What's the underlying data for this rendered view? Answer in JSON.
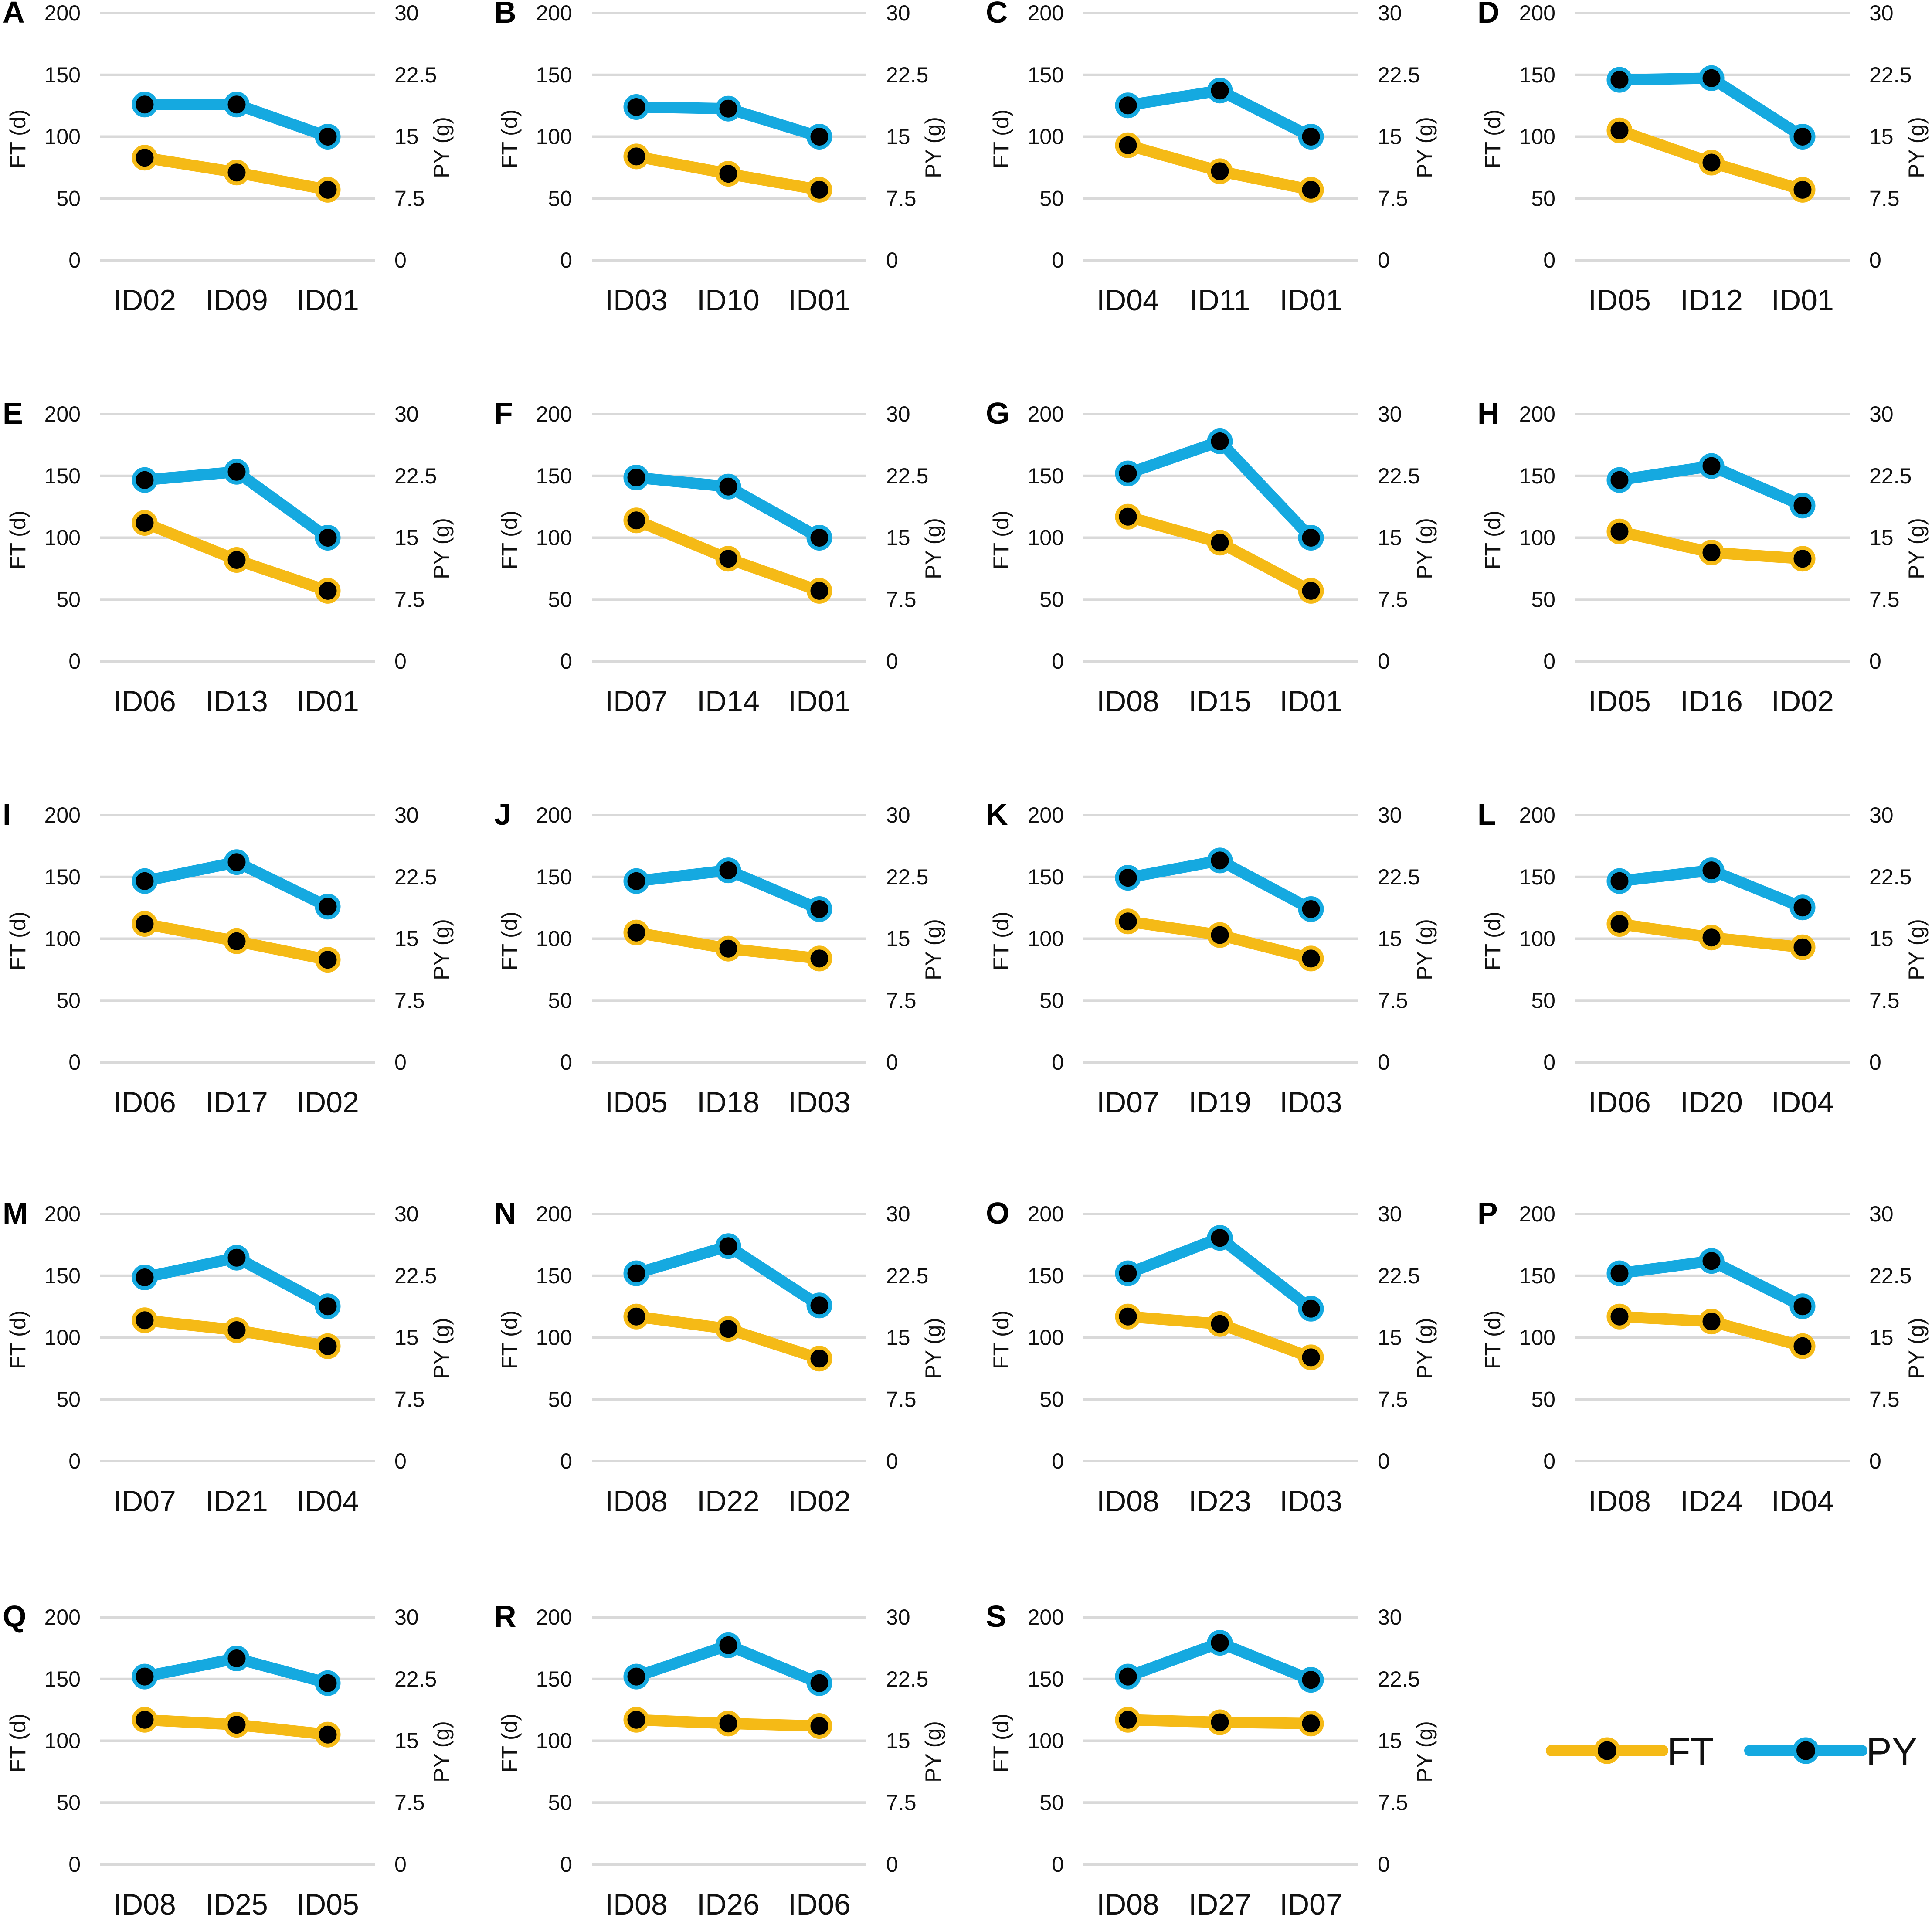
{
  "chart_data": [
    {
      "panel": "A",
      "type": "line",
      "categories": [
        "ID02",
        "ID09",
        "ID01"
      ],
      "series": [
        {
          "name": "FT",
          "axis": "left",
          "values": [
            83,
            71,
            57
          ]
        },
        {
          "name": "PY",
          "axis": "right",
          "values": [
            18.9,
            18.9,
            15.0
          ]
        }
      ],
      "ylabel": "FT (d)",
      "y2label": "PY (g)",
      "ylim": [
        0,
        200
      ],
      "y2lim": [
        0,
        30
      ],
      "yticks": [
        "0",
        "50",
        "100",
        "150",
        "200"
      ],
      "y2ticks": [
        "0",
        "7.5",
        "15",
        "22.5",
        "30"
      ]
    },
    {
      "panel": "B",
      "type": "line",
      "categories": [
        "ID03",
        "ID10",
        "ID01"
      ],
      "series": [
        {
          "name": "FT",
          "axis": "left",
          "values": [
            84,
            70,
            57
          ]
        },
        {
          "name": "PY",
          "axis": "right",
          "values": [
            18.6,
            18.4,
            15.0
          ]
        }
      ],
      "ylabel": "FT (d)",
      "y2label": "PY (g)",
      "ylim": [
        0,
        200
      ],
      "y2lim": [
        0,
        30
      ],
      "yticks": [
        "0",
        "50",
        "100",
        "150",
        "200"
      ],
      "y2ticks": [
        "0",
        "7.5",
        "15",
        "22.5",
        "30"
      ]
    },
    {
      "panel": "C",
      "type": "line",
      "categories": [
        "ID04",
        "ID11",
        "ID01"
      ],
      "series": [
        {
          "name": "FT",
          "axis": "left",
          "values": [
            93,
            72,
            57
          ]
        },
        {
          "name": "PY",
          "axis": "right",
          "values": [
            18.8,
            20.6,
            15.0
          ]
        }
      ],
      "ylabel": "FT (d)",
      "y2label": "PY (g)",
      "ylim": [
        0,
        200
      ],
      "y2lim": [
        0,
        30
      ],
      "yticks": [
        "0",
        "50",
        "100",
        "150",
        "200"
      ],
      "y2ticks": [
        "0",
        "7.5",
        "15",
        "22.5",
        "30"
      ]
    },
    {
      "panel": "D",
      "type": "line",
      "categories": [
        "ID05",
        "ID12",
        "ID01"
      ],
      "series": [
        {
          "name": "FT",
          "axis": "left",
          "values": [
            105,
            79,
            57
          ]
        },
        {
          "name": "PY",
          "axis": "right",
          "values": [
            21.9,
            22.1,
            15.0
          ]
        }
      ],
      "ylabel": "FT (d)",
      "y2label": "PY (g)",
      "ylim": [
        0,
        200
      ],
      "y2lim": [
        0,
        30
      ],
      "yticks": [
        "0",
        "50",
        "100",
        "150",
        "200"
      ],
      "y2ticks": [
        "0",
        "7.5",
        "15",
        "22.5",
        "30"
      ]
    },
    {
      "panel": "E",
      "type": "line",
      "categories": [
        "ID06",
        "ID13",
        "ID01"
      ],
      "series": [
        {
          "name": "FT",
          "axis": "left",
          "values": [
            112,
            82,
            57
          ]
        },
        {
          "name": "PY",
          "axis": "right",
          "values": [
            22.0,
            23.0,
            15.0
          ]
        }
      ],
      "ylabel": "FT (d)",
      "y2label": "PY (g)",
      "ylim": [
        0,
        200
      ],
      "y2lim": [
        0,
        30
      ],
      "yticks": [
        "0",
        "50",
        "100",
        "150",
        "200"
      ],
      "y2ticks": [
        "0",
        "7.5",
        "15",
        "22.5",
        "30"
      ]
    },
    {
      "panel": "F",
      "type": "line",
      "categories": [
        "ID07",
        "ID14",
        "ID01"
      ],
      "series": [
        {
          "name": "FT",
          "axis": "left",
          "values": [
            114,
            83,
            57
          ]
        },
        {
          "name": "PY",
          "axis": "right",
          "values": [
            22.3,
            21.2,
            15.0
          ]
        }
      ],
      "ylabel": "FT (d)",
      "y2label": "PY (g)",
      "ylim": [
        0,
        200
      ],
      "y2lim": [
        0,
        30
      ],
      "yticks": [
        "0",
        "50",
        "100",
        "150",
        "200"
      ],
      "y2ticks": [
        "0",
        "7.5",
        "15",
        "22.5",
        "30"
      ]
    },
    {
      "panel": "G",
      "type": "line",
      "categories": [
        "ID08",
        "ID15",
        "ID01"
      ],
      "series": [
        {
          "name": "FT",
          "axis": "left",
          "values": [
            117,
            96,
            57
          ]
        },
        {
          "name": "PY",
          "axis": "right",
          "values": [
            22.8,
            26.7,
            15.0
          ]
        }
      ],
      "ylabel": "FT (d)",
      "y2label": "PY (g)",
      "ylim": [
        0,
        200
      ],
      "y2lim": [
        0,
        30
      ],
      "yticks": [
        "0",
        "50",
        "100",
        "150",
        "200"
      ],
      "y2ticks": [
        "0",
        "7.5",
        "15",
        "22.5",
        "30"
      ]
    },
    {
      "panel": "H",
      "type": "line",
      "categories": [
        "ID05",
        "ID16",
        "ID02"
      ],
      "series": [
        {
          "name": "FT",
          "axis": "left",
          "values": [
            105,
            88,
            83
          ]
        },
        {
          "name": "PY",
          "axis": "right",
          "values": [
            22.0,
            23.7,
            18.9
          ]
        }
      ],
      "ylabel": "FT (d)",
      "y2label": "PY (g)",
      "ylim": [
        0,
        200
      ],
      "y2lim": [
        0,
        30
      ],
      "yticks": [
        "0",
        "50",
        "100",
        "150",
        "200"
      ],
      "y2ticks": [
        "0",
        "7.5",
        "15",
        "22.5",
        "30"
      ]
    },
    {
      "panel": "I",
      "type": "line",
      "categories": [
        "ID06",
        "ID17",
        "ID02"
      ],
      "series": [
        {
          "name": "FT",
          "axis": "left",
          "values": [
            112,
            98,
            83
          ]
        },
        {
          "name": "PY",
          "axis": "right",
          "values": [
            22.0,
            24.3,
            18.9
          ]
        }
      ],
      "ylabel": "FT (d)",
      "y2label": "PY (g)",
      "ylim": [
        0,
        200
      ],
      "y2lim": [
        0,
        30
      ],
      "yticks": [
        "0",
        "50",
        "100",
        "150",
        "200"
      ],
      "y2ticks": [
        "0",
        "7.5",
        "15",
        "22.5",
        "30"
      ]
    },
    {
      "panel": "J",
      "type": "line",
      "categories": [
        "ID05",
        "ID18",
        "ID03"
      ],
      "series": [
        {
          "name": "FT",
          "axis": "left",
          "values": [
            105,
            92,
            84
          ]
        },
        {
          "name": "PY",
          "axis": "right",
          "values": [
            22.0,
            23.3,
            18.6
          ]
        }
      ],
      "ylabel": "FT (d)",
      "y2label": "PY (g)",
      "ylim": [
        0,
        200
      ],
      "y2lim": [
        0,
        30
      ],
      "yticks": [
        "0",
        "50",
        "100",
        "150",
        "200"
      ],
      "y2ticks": [
        "0",
        "7.5",
        "15",
        "22.5",
        "30"
      ]
    },
    {
      "panel": "K",
      "type": "line",
      "categories": [
        "ID07",
        "ID19",
        "ID03"
      ],
      "series": [
        {
          "name": "FT",
          "axis": "left",
          "values": [
            114,
            103,
            84
          ]
        },
        {
          "name": "PY",
          "axis": "right",
          "values": [
            22.4,
            24.5,
            18.6
          ]
        }
      ],
      "ylabel": "FT (d)",
      "y2label": "PY (g)",
      "ylim": [
        0,
        200
      ],
      "y2lim": [
        0,
        30
      ],
      "yticks": [
        "0",
        "50",
        "100",
        "150",
        "200"
      ],
      "y2ticks": [
        "0",
        "7.5",
        "15",
        "22.5",
        "30"
      ]
    },
    {
      "panel": "L",
      "type": "line",
      "categories": [
        "ID06",
        "ID20",
        "ID04"
      ],
      "series": [
        {
          "name": "FT",
          "axis": "left",
          "values": [
            112,
            101,
            93
          ]
        },
        {
          "name": "PY",
          "axis": "right",
          "values": [
            22.0,
            23.3,
            18.8
          ]
        }
      ],
      "ylabel": "FT (d)",
      "y2label": "PY (g)",
      "ylim": [
        0,
        200
      ],
      "y2lim": [
        0,
        30
      ],
      "yticks": [
        "0",
        "50",
        "100",
        "150",
        "200"
      ],
      "y2ticks": [
        "0",
        "7.5",
        "15",
        "22.5",
        "30"
      ]
    },
    {
      "panel": "M",
      "type": "line",
      "categories": [
        "ID07",
        "ID21",
        "ID04"
      ],
      "series": [
        {
          "name": "FT",
          "axis": "left",
          "values": [
            114,
            106,
            93
          ]
        },
        {
          "name": "PY",
          "axis": "right",
          "values": [
            22.3,
            24.7,
            18.8
          ]
        }
      ],
      "ylabel": "FT (d)",
      "y2label": "PY (g)",
      "ylim": [
        0,
        200
      ],
      "y2lim": [
        0,
        30
      ],
      "yticks": [
        "0",
        "50",
        "100",
        "150",
        "200"
      ],
      "y2ticks": [
        "0",
        "7.5",
        "15",
        "22.5",
        "30"
      ]
    },
    {
      "panel": "N",
      "type": "line",
      "categories": [
        "ID08",
        "ID22",
        "ID02"
      ],
      "series": [
        {
          "name": "FT",
          "axis": "left",
          "values": [
            117,
            107,
            83
          ]
        },
        {
          "name": "PY",
          "axis": "right",
          "values": [
            22.8,
            26.1,
            18.9
          ]
        }
      ],
      "ylabel": "FT (d)",
      "y2label": "PY (g)",
      "ylim": [
        0,
        200
      ],
      "y2lim": [
        0,
        30
      ],
      "yticks": [
        "0",
        "50",
        "100",
        "150",
        "200"
      ],
      "y2ticks": [
        "0",
        "7.5",
        "15",
        "22.5",
        "30"
      ]
    },
    {
      "panel": "O",
      "type": "line",
      "categories": [
        "ID08",
        "ID23",
        "ID03"
      ],
      "series": [
        {
          "name": "FT",
          "axis": "left",
          "values": [
            117,
            111,
            84
          ]
        },
        {
          "name": "PY",
          "axis": "right",
          "values": [
            22.8,
            27.1,
            18.5
          ]
        }
      ],
      "ylabel": "FT (d)",
      "y2label": "PY (g)",
      "ylim": [
        0,
        200
      ],
      "y2lim": [
        0,
        30
      ],
      "yticks": [
        "0",
        "50",
        "100",
        "150",
        "200"
      ],
      "y2ticks": [
        "0",
        "7.5",
        "15",
        "22.5",
        "30"
      ]
    },
    {
      "panel": "P",
      "type": "line",
      "categories": [
        "ID08",
        "ID24",
        "ID04"
      ],
      "series": [
        {
          "name": "FT",
          "axis": "left",
          "values": [
            117,
            113,
            93
          ]
        },
        {
          "name": "PY",
          "axis": "right",
          "values": [
            22.8,
            24.3,
            18.8
          ]
        }
      ],
      "ylabel": "FT (d)",
      "y2label": "PY (g)",
      "ylim": [
        0,
        200
      ],
      "y2lim": [
        0,
        30
      ],
      "yticks": [
        "0",
        "50",
        "100",
        "150",
        "200"
      ],
      "y2ticks": [
        "0",
        "7.5",
        "15",
        "22.5",
        "30"
      ]
    },
    {
      "panel": "Q",
      "type": "line",
      "categories": [
        "ID08",
        "ID25",
        "ID05"
      ],
      "series": [
        {
          "name": "FT",
          "axis": "left",
          "values": [
            117,
            113,
            105
          ]
        },
        {
          "name": "PY",
          "axis": "right",
          "values": [
            22.8,
            25.0,
            22.0
          ]
        }
      ],
      "ylabel": "FT (d)",
      "y2label": "PY (g)",
      "ylim": [
        0,
        200
      ],
      "y2lim": [
        0,
        30
      ],
      "yticks": [
        "0",
        "50",
        "100",
        "150",
        "200"
      ],
      "y2ticks": [
        "0",
        "7.5",
        "15",
        "22.5",
        "30"
      ]
    },
    {
      "panel": "R",
      "type": "line",
      "categories": [
        "ID08",
        "ID26",
        "ID06"
      ],
      "series": [
        {
          "name": "FT",
          "axis": "left",
          "values": [
            117,
            114,
            112
          ]
        },
        {
          "name": "PY",
          "axis": "right",
          "values": [
            22.8,
            26.6,
            22.0
          ]
        }
      ],
      "ylabel": "FT (d)",
      "y2label": "PY (g)",
      "ylim": [
        0,
        200
      ],
      "y2lim": [
        0,
        30
      ],
      "yticks": [
        "0",
        "50",
        "100",
        "150",
        "200"
      ],
      "y2ticks": [
        "0",
        "7.5",
        "15",
        "22.5",
        "30"
      ]
    },
    {
      "panel": "S",
      "type": "line",
      "categories": [
        "ID08",
        "ID27",
        "ID07"
      ],
      "series": [
        {
          "name": "FT",
          "axis": "left",
          "values": [
            117,
            115,
            114
          ]
        },
        {
          "name": "PY",
          "axis": "right",
          "values": [
            22.8,
            26.9,
            22.4
          ]
        }
      ],
      "ylabel": "FT (d)",
      "y2label": "PY (g)",
      "ylim": [
        0,
        200
      ],
      "y2lim": [
        0,
        30
      ],
      "yticks": [
        "0",
        "50",
        "100",
        "150",
        "200"
      ],
      "y2ticks": [
        "0",
        "7.5",
        "15",
        "22.5",
        "30"
      ]
    }
  ],
  "legend": {
    "position": "bottom-right",
    "items": [
      {
        "name": "FT",
        "color": "#F5BA16"
      },
      {
        "name": "PY",
        "color": "#15A9E0"
      }
    ]
  },
  "colors": {
    "ft_line": "#F5BA16",
    "py_line": "#15A9E0",
    "marker_fill": "#000000",
    "gridline": "#D9D9D9"
  }
}
